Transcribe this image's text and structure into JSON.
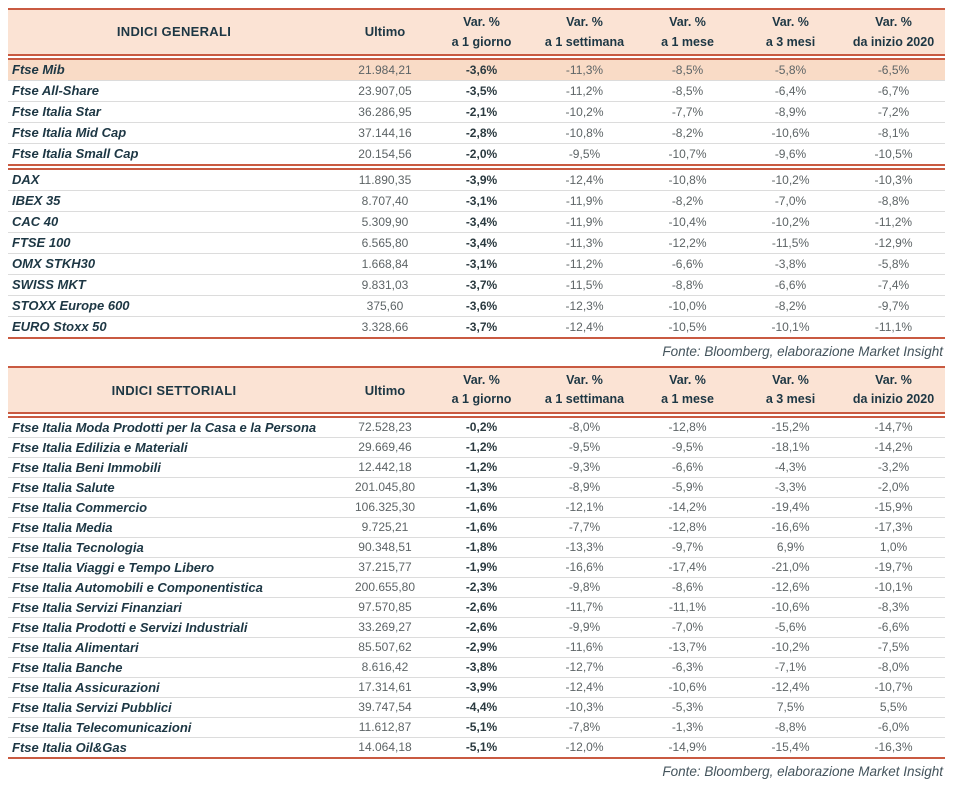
{
  "colors": {
    "line": "#c95a41",
    "header_bg": "#fbe3d4",
    "highlight_bg": "#f9dbc6",
    "label_text": "#1d3744",
    "value_text": "#5d6466",
    "value_bold_text": "#2b3a40",
    "divider": "#dcdcdc",
    "note_text": "#44545c"
  },
  "tables": [
    {
      "title": "INDICI GENERALI",
      "ultimo_header": "Ultimo",
      "var_headers": [
        {
          "top": "Var. %",
          "bottom": "a 1 giorno"
        },
        {
          "top": "Var. %",
          "bottom": "a 1 settimana"
        },
        {
          "top": "Var. %",
          "bottom": "a 1 mese"
        },
        {
          "top": "Var. %",
          "bottom": "a 3 mesi"
        },
        {
          "top": "Var. %",
          "bottom": "da inizio 2020"
        }
      ],
      "groups": [
        {
          "rows": [
            {
              "label": "Ftse Mib",
              "ultimo": "21.984,21",
              "vars": [
                "-3,6%",
                "-11,3%",
                "-8,5%",
                "-5,8%",
                "-6,5%"
              ],
              "highlight": true
            },
            {
              "label": "Ftse All-Share",
              "ultimo": "23.907,05",
              "vars": [
                "-3,5%",
                "-11,2%",
                "-8,5%",
                "-6,4%",
                "-6,7%"
              ]
            },
            {
              "label": "Ftse Italia Star",
              "ultimo": "36.286,95",
              "vars": [
                "-2,1%",
                "-10,2%",
                "-7,7%",
                "-8,9%",
                "-7,2%"
              ]
            },
            {
              "label": "Ftse Italia Mid Cap",
              "ultimo": "37.144,16",
              "vars": [
                "-2,8%",
                "-10,8%",
                "-8,2%",
                "-10,6%",
                "-8,1%"
              ]
            },
            {
              "label": "Ftse Italia Small Cap",
              "ultimo": "20.154,56",
              "vars": [
                "-2,0%",
                "-9,5%",
                "-10,7%",
                "-9,6%",
                "-10,5%"
              ]
            }
          ]
        },
        {
          "rows": [
            {
              "label": "DAX",
              "ultimo": "11.890,35",
              "vars": [
                "-3,9%",
                "-12,4%",
                "-10,8%",
                "-10,2%",
                "-10,3%"
              ]
            },
            {
              "label": "IBEX 35",
              "ultimo": "8.707,40",
              "vars": [
                "-3,1%",
                "-11,9%",
                "-8,2%",
                "-7,0%",
                "-8,8%"
              ]
            },
            {
              "label": "CAC 40",
              "ultimo": "5.309,90",
              "vars": [
                "-3,4%",
                "-11,9%",
                "-10,4%",
                "-10,2%",
                "-11,2%"
              ]
            },
            {
              "label": "FTSE 100",
              "ultimo": "6.565,80",
              "vars": [
                "-3,4%",
                "-11,3%",
                "-12,2%",
                "-11,5%",
                "-12,9%"
              ]
            },
            {
              "label": "OMX STKH30",
              "ultimo": "1.668,84",
              "vars": [
                "-3,1%",
                "-11,2%",
                "-6,6%",
                "-3,8%",
                "-5,8%"
              ]
            },
            {
              "label": "SWISS MKT",
              "ultimo": "9.831,03",
              "vars": [
                "-3,7%",
                "-11,5%",
                "-8,8%",
                "-6,6%",
                "-7,4%"
              ]
            },
            {
              "label": "STOXX Europe 600",
              "ultimo": "375,60",
              "vars": [
                "-3,6%",
                "-12,3%",
                "-10,0%",
                "-8,2%",
                "-9,7%"
              ]
            },
            {
              "label": "EURO Stoxx 50",
              "ultimo": "3.328,66",
              "vars": [
                "-3,7%",
                "-12,4%",
                "-10,5%",
                "-10,1%",
                "-11,1%"
              ]
            }
          ]
        }
      ],
      "source_note": "Fonte: Bloomberg, elaborazione Market Insight"
    },
    {
      "title": "INDICI SETTORIALI",
      "ultimo_header": "Ultimo",
      "var_headers": [
        {
          "top": "Var. %",
          "bottom": "a 1 giorno"
        },
        {
          "top": "Var. %",
          "bottom": "a 1 settimana"
        },
        {
          "top": "Var. %",
          "bottom": "a 1 mese"
        },
        {
          "top": "Var. %",
          "bottom": "a 3 mesi"
        },
        {
          "top": "Var. %",
          "bottom": "da inizio 2020"
        }
      ],
      "groups": [
        {
          "rows": [
            {
              "label": "Ftse Italia Moda Prodotti per la Casa e la Persona",
              "ultimo": "72.528,23",
              "vars": [
                "-0,2%",
                "-8,0%",
                "-12,8%",
                "-15,2%",
                "-14,7%"
              ]
            },
            {
              "label": "Ftse Italia Edilizia e Materiali",
              "ultimo": "29.669,46",
              "vars": [
                "-1,2%",
                "-9,5%",
                "-9,5%",
                "-18,1%",
                "-14,2%"
              ]
            },
            {
              "label": "Ftse Italia Beni Immobili",
              "ultimo": "12.442,18",
              "vars": [
                "-1,2%",
                "-9,3%",
                "-6,6%",
                "-4,3%",
                "-3,2%"
              ]
            },
            {
              "label": "Ftse Italia Salute",
              "ultimo": "201.045,80",
              "vars": [
                "-1,3%",
                "-8,9%",
                "-5,9%",
                "-3,3%",
                "-2,0%"
              ]
            },
            {
              "label": "Ftse Italia Commercio",
              "ultimo": "106.325,30",
              "vars": [
                "-1,6%",
                "-12,1%",
                "-14,2%",
                "-19,4%",
                "-15,9%"
              ]
            },
            {
              "label": "Ftse Italia Media",
              "ultimo": "9.725,21",
              "vars": [
                "-1,6%",
                "-7,7%",
                "-12,8%",
                "-16,6%",
                "-17,3%"
              ]
            },
            {
              "label": "Ftse Italia Tecnologia",
              "ultimo": "90.348,51",
              "vars": [
                "-1,8%",
                "-13,3%",
                "-9,7%",
                "6,9%",
                "1,0%"
              ]
            },
            {
              "label": "Ftse Italia Viaggi e Tempo Libero",
              "ultimo": "37.215,77",
              "vars": [
                "-1,9%",
                "-16,6%",
                "-17,4%",
                "-21,0%",
                "-19,7%"
              ]
            },
            {
              "label": "Ftse Italia Automobili e Componentistica",
              "ultimo": "200.655,80",
              "vars": [
                "-2,3%",
                "-9,8%",
                "-8,6%",
                "-12,6%",
                "-10,1%"
              ]
            },
            {
              "label": "Ftse Italia Servizi Finanziari",
              "ultimo": "97.570,85",
              "vars": [
                "-2,6%",
                "-11,7%",
                "-11,1%",
                "-10,6%",
                "-8,3%"
              ]
            },
            {
              "label": "Ftse Italia Prodotti e Servizi Industriali",
              "ultimo": "33.269,27",
              "vars": [
                "-2,6%",
                "-9,9%",
                "-7,0%",
                "-5,6%",
                "-6,6%"
              ]
            },
            {
              "label": "Ftse Italia Alimentari",
              "ultimo": "85.507,62",
              "vars": [
                "-2,9%",
                "-11,6%",
                "-13,7%",
                "-10,2%",
                "-7,5%"
              ]
            },
            {
              "label": "Ftse Italia Banche",
              "ultimo": "8.616,42",
              "vars": [
                "-3,8%",
                "-12,7%",
                "-6,3%",
                "-7,1%",
                "-8,0%"
              ]
            },
            {
              "label": "Ftse Italia Assicurazioni",
              "ultimo": "17.314,61",
              "vars": [
                "-3,9%",
                "-12,4%",
                "-10,6%",
                "-12,4%",
                "-10,7%"
              ]
            },
            {
              "label": "Ftse Italia Servizi Pubblici",
              "ultimo": "39.747,54",
              "vars": [
                "-4,4%",
                "-10,3%",
                "-5,3%",
                "7,5%",
                "5,5%"
              ]
            },
            {
              "label": "Ftse Italia Telecomunicazioni",
              "ultimo": "11.612,87",
              "vars": [
                "-5,1%",
                "-7,8%",
                "-1,3%",
                "-8,8%",
                "-6,0%"
              ]
            },
            {
              "label": "Ftse Italia Oil&Gas",
              "ultimo": "14.064,18",
              "vars": [
                "-5,1%",
                "-12,0%",
                "-14,9%",
                "-15,4%",
                "-16,3%"
              ]
            }
          ]
        }
      ],
      "source_note": "Fonte: Bloomberg, elaborazione Market Insight"
    }
  ]
}
